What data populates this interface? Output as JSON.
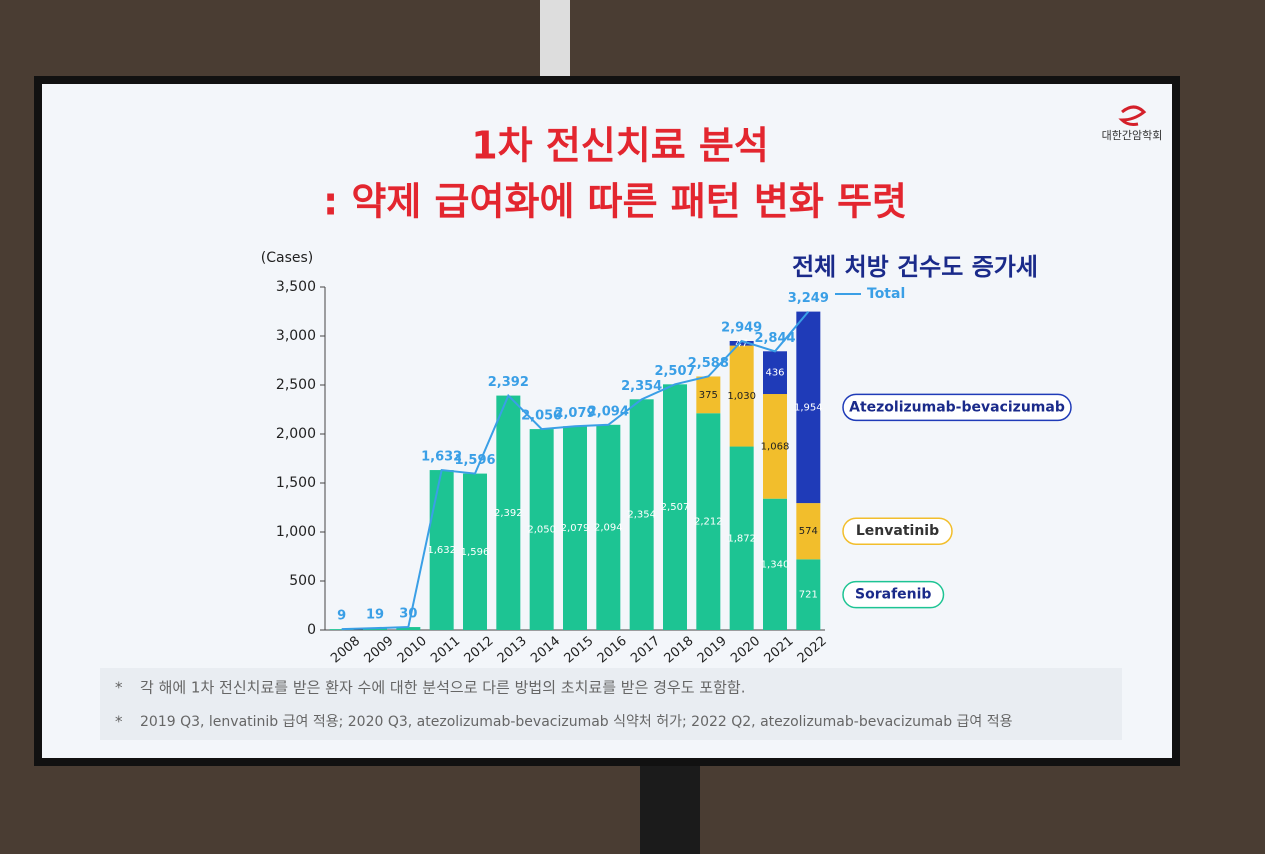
{
  "header": {
    "logo": "대한간암학회",
    "title_line1": "1차 전신치료 분석",
    "title_line2": ": 약제 급여화에 따른 패턴 변화 뚜렷"
  },
  "chart_data": {
    "type": "bar",
    "stacked": true,
    "annotation": "전체 처방 건수도 증가세",
    "y_label": "(Cases)",
    "categories": [
      "2008",
      "2009",
      "2010",
      "2011",
      "2012",
      "2013",
      "2014",
      "2015",
      "2016",
      "2017",
      "2018",
      "2019",
      "2020",
      "2021",
      "2022"
    ],
    "series": [
      {
        "name": "Sorafenib",
        "color": "#1dc493",
        "values": [
          9,
          19,
          30,
          1632,
          1596,
          2392,
          2050,
          2079,
          2094,
          2354,
          2507,
          2212,
          1872,
          1340,
          721
        ],
        "value_labels": [
          null,
          null,
          null,
          "1,632",
          "1,596",
          "2,392",
          "2,050",
          "2,079",
          "2,094",
          "2,354",
          "2,507",
          "2,212",
          "1,872",
          "1,340",
          "721"
        ]
      },
      {
        "name": "Lenvatinib",
        "color": "#f2be2c",
        "values": [
          null,
          null,
          null,
          null,
          null,
          null,
          null,
          null,
          null,
          null,
          null,
          375,
          1030,
          1068,
          574
        ],
        "value_labels": [
          null,
          null,
          null,
          null,
          null,
          null,
          null,
          null,
          null,
          null,
          null,
          "375",
          "1,030",
          "1,068",
          "574"
        ]
      },
      {
        "name": "Atezolizumab-bevacizumab",
        "color": "#1f3bb8",
        "values": [
          null,
          null,
          null,
          null,
          null,
          null,
          null,
          null,
          null,
          null,
          null,
          null,
          47,
          436,
          1954
        ],
        "value_labels": [
          null,
          null,
          null,
          null,
          null,
          null,
          null,
          null,
          null,
          null,
          null,
          null,
          "47",
          "436",
          "1,954"
        ]
      },
      {
        "name": "Total",
        "type": "line",
        "color": "#3a9fe6",
        "values": [
          9,
          19,
          30,
          1632,
          1596,
          2392,
          2050,
          2079,
          2094,
          2354,
          2507,
          2588,
          2949,
          2844,
          3249
        ],
        "value_labels": [
          "9",
          "19",
          "30",
          "1,632",
          "1,596",
          "2,392",
          "2,050",
          "2,079",
          "2,094",
          "2,354",
          "2,507",
          "2,588",
          "2,949",
          "2,844",
          "3,249"
        ]
      }
    ],
    "ylim": [
      0,
      3500
    ],
    "yticks": [
      0,
      500,
      {
        "value": 1000,
        "label": "1,000"
      },
      {
        "value": 1500,
        "label": "1,500"
      },
      {
        "value": 2000,
        "label": "2,000"
      },
      {
        "value": 2500,
        "label": "2,500"
      },
      {
        "value": 3000,
        "label": "3,000"
      },
      {
        "value": 3500,
        "label": "3,500"
      }
    ]
  },
  "footnotes": [
    {
      "marker": "*",
      "text": "각 해에 1차 전신치료를 받은 환자 수에 대한 분석으로 다른 방법의 초치료를 받은 경우도 포함함."
    },
    {
      "marker": "*",
      "text": "2019 Q3, lenvatinib 급여 적용; 2020 Q3, atezolizumab-bevacizumab 식약처 허가; 2022 Q2, atezolizumab-bevacizumab 급여 적용"
    }
  ]
}
